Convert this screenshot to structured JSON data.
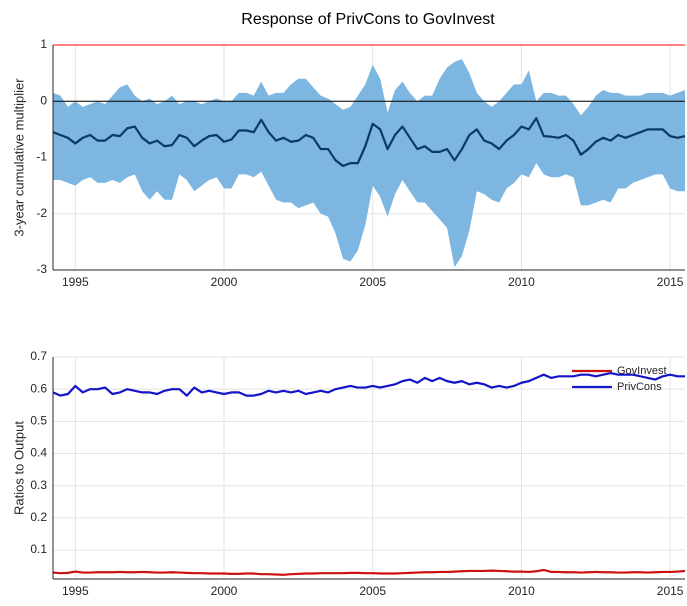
{
  "chart_data": [
    {
      "type": "line",
      "title": "Response of PrivCons to GovInvest",
      "y_label": "3-year cumulative multiplier",
      "x": [
        1994.25,
        1994.5,
        1994.75,
        1995,
        1995.25,
        1995.5,
        1995.75,
        1996,
        1996.25,
        1996.5,
        1996.75,
        1997,
        1997.25,
        1997.5,
        1997.75,
        1998,
        1998.25,
        1998.5,
        1998.75,
        1999,
        1999.25,
        1999.5,
        1999.75,
        2000,
        2000.25,
        2000.5,
        2000.75,
        2001,
        2001.25,
        2001.5,
        2001.75,
        2002,
        2002.25,
        2002.5,
        2002.75,
        2003,
        2003.25,
        2003.5,
        2003.75,
        2004,
        2004.25,
        2004.5,
        2004.75,
        2005,
        2005.25,
        2005.5,
        2005.75,
        2006,
        2006.25,
        2006.5,
        2006.75,
        2007,
        2007.25,
        2007.5,
        2007.75,
        2008,
        2008.25,
        2008.5,
        2008.75,
        2009,
        2009.25,
        2009.5,
        2009.75,
        2010,
        2010.25,
        2010.5,
        2010.75,
        2011,
        2011.25,
        2011.5,
        2011.75,
        2012,
        2012.25,
        2012.5,
        2012.75,
        2013,
        2013.25,
        2013.5,
        2013.75,
        2014,
        2014.25,
        2014.5,
        2014.75,
        2015,
        2015.25,
        2015.5
      ],
      "series": [
        {
          "color": "#0b3a66",
          "values": [
            -0.55,
            -0.6,
            -0.65,
            -0.75,
            -0.65,
            -0.6,
            -0.7,
            -0.7,
            -0.6,
            -0.62,
            -0.48,
            -0.45,
            -0.65,
            -0.75,
            -0.7,
            -0.8,
            -0.78,
            -0.6,
            -0.65,
            -0.8,
            -0.7,
            -0.62,
            -0.6,
            -0.72,
            -0.68,
            -0.52,
            -0.52,
            -0.55,
            -0.33,
            -0.55,
            -0.7,
            -0.65,
            -0.72,
            -0.7,
            -0.6,
            -0.65,
            -0.85,
            -0.85,
            -1.05,
            -1.15,
            -1.1,
            -1.1,
            -0.8,
            -0.4,
            -0.5,
            -0.85,
            -0.6,
            -0.45,
            -0.65,
            -0.85,
            -0.8,
            -0.9,
            -0.9,
            -0.85,
            -1.05,
            -0.85,
            -0.6,
            -0.5,
            -0.7,
            -0.75,
            -0.85,
            -0.7,
            -0.6,
            -0.45,
            -0.5,
            -0.3,
            -0.62,
            -0.63,
            -0.65,
            -0.6,
            -0.7,
            -0.95,
            -0.85,
            -0.72,
            -0.65,
            -0.7,
            -0.6,
            -0.65,
            -0.6,
            -0.55,
            -0.5,
            -0.5,
            -0.5,
            -0.62,
            -0.65,
            -0.62
          ]
        }
      ],
      "band": {
        "color": "#7db7e1",
        "upper": [
          0.15,
          0.1,
          -0.1,
          0.0,
          -0.1,
          -0.05,
          0.0,
          -0.05,
          0.1,
          0.25,
          0.3,
          0.1,
          0.0,
          0.05,
          -0.05,
          0.0,
          0.1,
          -0.05,
          0.0,
          0.0,
          -0.05,
          0.0,
          0.05,
          0.0,
          0.0,
          0.15,
          0.15,
          0.1,
          0.35,
          0.1,
          0.15,
          0.15,
          0.3,
          0.4,
          0.4,
          0.25,
          0.1,
          0.05,
          -0.05,
          -0.15,
          -0.1,
          0.1,
          0.3,
          0.65,
          0.4,
          -0.2,
          0.2,
          0.35,
          0.15,
          0.0,
          0.1,
          0.1,
          0.4,
          0.6,
          0.7,
          0.75,
          0.5,
          0.15,
          0.0,
          -0.1,
          0.0,
          0.15,
          0.3,
          0.3,
          0.55,
          0.0,
          0.15,
          0.15,
          0.1,
          0.1,
          -0.05,
          -0.25,
          -0.1,
          0.1,
          0.2,
          0.15,
          0.15,
          0.1,
          0.1,
          0.1,
          0.15,
          0.15,
          0.15,
          0.1,
          0.15,
          0.2
        ],
        "lower": [
          -1.4,
          -1.4,
          -1.45,
          -1.5,
          -1.4,
          -1.35,
          -1.45,
          -1.45,
          -1.4,
          -1.45,
          -1.35,
          -1.3,
          -1.6,
          -1.75,
          -1.6,
          -1.75,
          -1.75,
          -1.3,
          -1.4,
          -1.6,
          -1.5,
          -1.4,
          -1.35,
          -1.55,
          -1.55,
          -1.3,
          -1.3,
          -1.35,
          -1.25,
          -1.5,
          -1.75,
          -1.8,
          -1.8,
          -1.9,
          -1.85,
          -1.8,
          -2.0,
          -2.05,
          -2.35,
          -2.8,
          -2.85,
          -2.65,
          -2.2,
          -1.5,
          -1.7,
          -2.05,
          -1.65,
          -1.4,
          -1.6,
          -1.8,
          -1.8,
          -1.95,
          -2.1,
          -2.25,
          -2.95,
          -2.75,
          -2.3,
          -1.6,
          -1.65,
          -1.75,
          -1.8,
          -1.55,
          -1.45,
          -1.3,
          -1.35,
          -1.1,
          -1.3,
          -1.35,
          -1.35,
          -1.3,
          -1.35,
          -1.85,
          -1.85,
          -1.8,
          -1.75,
          -1.8,
          -1.55,
          -1.55,
          -1.45,
          -1.4,
          -1.35,
          -1.3,
          -1.3,
          -1.55,
          -1.6,
          -1.6
        ]
      },
      "reference_lines": [
        {
          "value": 1,
          "color": "#ff0000"
        },
        {
          "value": 0,
          "color": "#000000"
        }
      ],
      "xlim": [
        1994.25,
        2015.5
      ],
      "xticks": [
        1995,
        2000,
        2005,
        2010,
        2015
      ],
      "ylim": [
        -3,
        1
      ],
      "yticks": [
        -3,
        -2,
        -1,
        0,
        1
      ],
      "grid": true
    },
    {
      "type": "line",
      "y_label": "Ratios to Output",
      "x": [
        1994.25,
        1994.5,
        1994.75,
        1995,
        1995.25,
        1995.5,
        1995.75,
        1996,
        1996.25,
        1996.5,
        1996.75,
        1997,
        1997.25,
        1997.5,
        1997.75,
        1998,
        1998.25,
        1998.5,
        1998.75,
        1999,
        1999.25,
        1999.5,
        1999.75,
        2000,
        2000.25,
        2000.5,
        2000.75,
        2001,
        2001.25,
        2001.5,
        2001.75,
        2002,
        2002.25,
        2002.5,
        2002.75,
        2003,
        2003.25,
        2003.5,
        2003.75,
        2004,
        2004.25,
        2004.5,
        2004.75,
        2005,
        2005.25,
        2005.5,
        2005.75,
        2006,
        2006.25,
        2006.5,
        2006.75,
        2007,
        2007.25,
        2007.5,
        2007.75,
        2008,
        2008.25,
        2008.5,
        2008.75,
        2009,
        2009.25,
        2009.5,
        2009.75,
        2010,
        2010.25,
        2010.5,
        2010.75,
        2011,
        2011.25,
        2011.5,
        2011.75,
        2012,
        2012.25,
        2012.5,
        2012.75,
        2013,
        2013.25,
        2013.5,
        2013.75,
        2014,
        2014.25,
        2014.5,
        2014.75,
        2015,
        2015.25,
        2015.5
      ],
      "series": [
        {
          "name": "GovInvest",
          "color": "#cc1111",
          "values": [
            0.03,
            0.028,
            0.029,
            0.033,
            0.03,
            0.03,
            0.031,
            0.031,
            0.031,
            0.032,
            0.031,
            0.031,
            0.032,
            0.031,
            0.03,
            0.03,
            0.031,
            0.03,
            0.029,
            0.028,
            0.028,
            0.027,
            0.027,
            0.027,
            0.026,
            0.026,
            0.027,
            0.027,
            0.025,
            0.025,
            0.024,
            0.023,
            0.025,
            0.026,
            0.027,
            0.027,
            0.028,
            0.028,
            0.028,
            0.028,
            0.029,
            0.029,
            0.028,
            0.028,
            0.027,
            0.027,
            0.027,
            0.028,
            0.029,
            0.03,
            0.031,
            0.031,
            0.032,
            0.032,
            0.033,
            0.034,
            0.035,
            0.035,
            0.035,
            0.036,
            0.035,
            0.034,
            0.033,
            0.033,
            0.032,
            0.034,
            0.038,
            0.032,
            0.032,
            0.031,
            0.031,
            0.03,
            0.031,
            0.032,
            0.031,
            0.031,
            0.03,
            0.03,
            0.031,
            0.031,
            0.03,
            0.031,
            0.032,
            0.032,
            0.033,
            0.035
          ]
        },
        {
          "name": "PrivCons",
          "color": "#1414c8",
          "values": [
            0.59,
            0.58,
            0.585,
            0.61,
            0.59,
            0.6,
            0.6,
            0.605,
            0.585,
            0.59,
            0.6,
            0.595,
            0.59,
            0.59,
            0.585,
            0.595,
            0.6,
            0.6,
            0.58,
            0.605,
            0.59,
            0.595,
            0.59,
            0.585,
            0.59,
            0.59,
            0.58,
            0.58,
            0.585,
            0.595,
            0.59,
            0.595,
            0.59,
            0.595,
            0.585,
            0.59,
            0.595,
            0.59,
            0.6,
            0.605,
            0.61,
            0.605,
            0.605,
            0.61,
            0.605,
            0.61,
            0.615,
            0.625,
            0.63,
            0.62,
            0.635,
            0.625,
            0.635,
            0.625,
            0.62,
            0.625,
            0.615,
            0.62,
            0.615,
            0.605,
            0.61,
            0.605,
            0.61,
            0.62,
            0.625,
            0.635,
            0.645,
            0.635,
            0.64,
            0.64,
            0.64,
            0.645,
            0.645,
            0.64,
            0.645,
            0.65,
            0.645,
            0.645,
            0.645,
            0.64,
            0.635,
            0.63,
            0.64,
            0.645,
            0.64,
            0.64
          ]
        }
      ],
      "legend": "northeast",
      "xlim": [
        1994.25,
        2015.5
      ],
      "xticks": [
        1995,
        2000,
        2005,
        2010,
        2015
      ],
      "ylim": [
        0.01,
        0.7
      ],
      "yticks": [
        0.1,
        0.2,
        0.3,
        0.4,
        0.5,
        0.6,
        0.7
      ],
      "grid": true
    }
  ]
}
